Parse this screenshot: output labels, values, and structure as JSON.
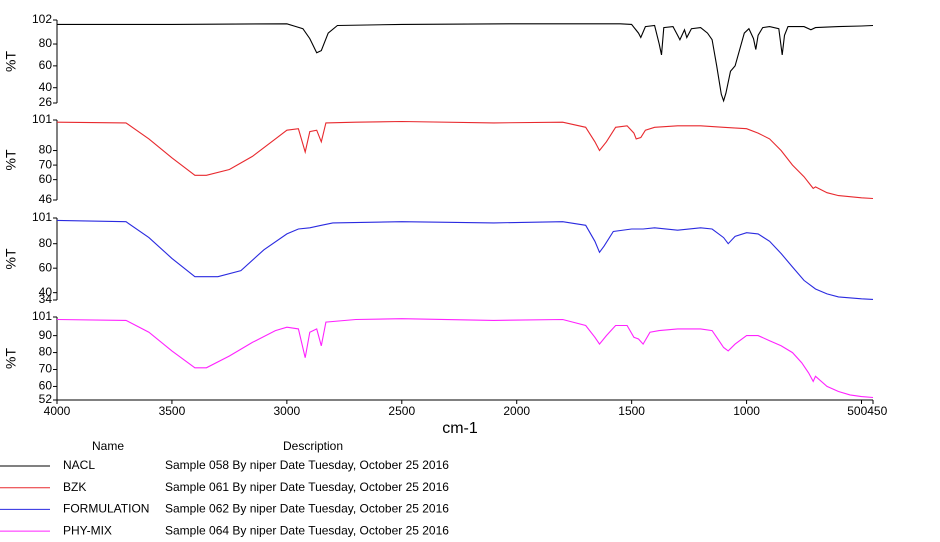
{
  "chart_data": [
    {
      "type": "line",
      "ylabel": "%T",
      "xlim": [
        4000,
        450
      ],
      "ylim": [
        26,
        102
      ],
      "yticks": [
        102,
        80,
        60,
        40,
        26
      ],
      "x": [
        4000,
        3500,
        3000,
        2960,
        2930,
        2900,
        2870,
        2850,
        2820,
        2780,
        2500,
        2000,
        1550,
        1500,
        1470,
        1460,
        1440,
        1400,
        1380,
        1370,
        1360,
        1320,
        1300,
        1290,
        1270,
        1260,
        1240,
        1200,
        1170,
        1150,
        1130,
        1110,
        1100,
        1090,
        1070,
        1050,
        1030,
        1010,
        990,
        970,
        960,
        950,
        930,
        900,
        860,
        845,
        835,
        820,
        750,
        720,
        700,
        600,
        500,
        450
      ],
      "series": [
        {
          "name": "NACL",
          "color": "#000000",
          "description": "Sample 058 By niper Date Tuesday, October 25 2016",
          "values": [
            98,
            98,
            98.5,
            96,
            94,
            85,
            72,
            74,
            90,
            97,
            98,
            98.5,
            98.5,
            98,
            90,
            86,
            96,
            97,
            80,
            70,
            95,
            96,
            88,
            84,
            93,
            86,
            94,
            95,
            90,
            84,
            60,
            34,
            28,
            35,
            55,
            60,
            75,
            90,
            94,
            85,
            75,
            88,
            95,
            96,
            94,
            70,
            88,
            96,
            96,
            93,
            95,
            96,
            96.5,
            97
          ]
        }
      ]
    },
    {
      "type": "line",
      "ylabel": "%T",
      "xlim": [
        4000,
        450
      ],
      "ylim": [
        46,
        101
      ],
      "yticks": [
        101,
        80,
        70,
        60,
        46
      ],
      "x": [
        4000,
        3700,
        3600,
        3500,
        3400,
        3350,
        3250,
        3150,
        3050,
        3000,
        2950,
        2920,
        2900,
        2870,
        2850,
        2830,
        2700,
        2500,
        2100,
        1800,
        1700,
        1660,
        1640,
        1610,
        1570,
        1520,
        1490,
        1480,
        1460,
        1440,
        1400,
        1300,
        1200,
        1100,
        1000,
        950,
        900,
        850,
        800,
        750,
        720,
        710,
        700,
        650,
        600,
        500,
        450
      ],
      "series": [
        {
          "name": "BZK",
          "color": "#e8292e",
          "description": "Sample 061 By niper Date Tuesday, October 25 2016",
          "values": [
            99.5,
            99,
            88,
            75,
            63,
            63,
            67,
            76,
            88,
            94,
            95,
            79,
            93,
            94,
            86,
            99,
            99.5,
            100,
            99,
            99.5,
            96,
            86,
            80,
            86,
            96,
            97,
            92,
            88,
            89,
            94,
            96,
            97,
            97,
            96,
            95,
            92,
            88,
            80,
            70,
            62,
            56,
            54,
            55,
            51,
            49,
            47.5,
            47
          ]
        }
      ]
    },
    {
      "type": "line",
      "ylabel": "%T",
      "xlim": [
        4000,
        450
      ],
      "ylim": [
        34,
        101
      ],
      "yticks": [
        101,
        80,
        60,
        40,
        34
      ],
      "x": [
        4000,
        3700,
        3600,
        3500,
        3400,
        3300,
        3200,
        3100,
        3000,
        2950,
        2900,
        2850,
        2800,
        2500,
        2100,
        1800,
        1700,
        1660,
        1640,
        1620,
        1580,
        1500,
        1450,
        1400,
        1300,
        1200,
        1150,
        1100,
        1080,
        1050,
        1000,
        950,
        900,
        850,
        800,
        750,
        700,
        650,
        600,
        500,
        450
      ],
      "series": [
        {
          "name": "FORMULATION",
          "color": "#2a2ae0",
          "description": "Sample 062 By niper Date Tuesday, October 25 2016",
          "values": [
            99,
            98,
            85,
            68,
            53,
            53,
            58,
            75,
            88,
            92,
            93,
            95,
            97,
            98,
            97,
            98,
            95,
            82,
            73,
            78,
            90,
            92,
            92,
            93,
            91,
            93,
            92,
            85,
            80,
            86,
            89,
            88,
            82,
            72,
            61,
            50,
            43,
            39,
            36.5,
            35,
            34.5
          ]
        }
      ]
    },
    {
      "type": "line",
      "ylabel": "%T",
      "xlabel": "cm-1",
      "xlim": [
        4000,
        450
      ],
      "ylim": [
        52,
        101
      ],
      "yticks": [
        101,
        90,
        80,
        70,
        60,
        52
      ],
      "xticks": [
        4000,
        3500,
        3000,
        2500,
        2000,
        1500,
        1000,
        500,
        450
      ],
      "x": [
        4000,
        3700,
        3600,
        3500,
        3400,
        3350,
        3250,
        3150,
        3050,
        3000,
        2950,
        2920,
        2900,
        2870,
        2850,
        2830,
        2700,
        2500,
        2100,
        1800,
        1700,
        1660,
        1640,
        1610,
        1570,
        1520,
        1490,
        1470,
        1450,
        1420,
        1380,
        1300,
        1200,
        1150,
        1120,
        1100,
        1080,
        1050,
        1000,
        950,
        900,
        850,
        800,
        760,
        730,
        710,
        700,
        650,
        600,
        550,
        500,
        450
      ],
      "series": [
        {
          "name": "PHY-MIX",
          "color": "#ff22ff",
          "description": "Sample 064 By niper Date Tuesday, October 25 2016",
          "values": [
            99.5,
            99,
            92,
            81,
            71,
            71,
            78,
            86,
            93,
            95,
            94,
            77,
            92,
            94,
            84,
            98,
            99.5,
            100,
            99,
            99.5,
            96,
            89,
            85,
            90,
            96,
            96,
            89,
            88,
            85,
            92,
            93,
            94,
            94,
            93,
            87,
            83,
            81,
            85,
            90,
            90,
            87,
            84,
            80,
            74,
            68,
            63,
            66,
            60,
            57,
            55,
            54,
            53.5
          ]
        }
      ]
    }
  ],
  "legend": {
    "name_header": "Name",
    "description_header": "Description"
  }
}
